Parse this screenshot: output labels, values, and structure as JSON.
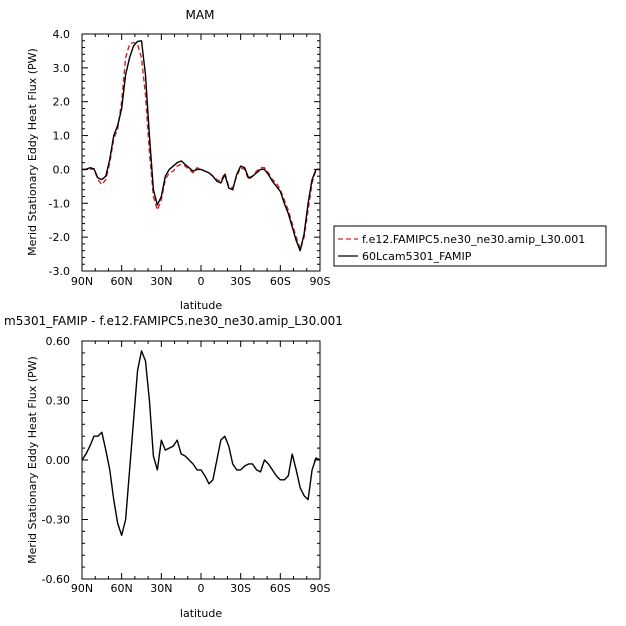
{
  "chart_data": [
    {
      "type": "line",
      "title": "MAM",
      "xlabel": "latitude",
      "ylabel": "Merid Stationary Eddy Heat Flux (PW)",
      "xlim": [
        90,
        -90
      ],
      "ylim": [
        -3.0,
        4.0
      ],
      "xticks": [
        90,
        60,
        30,
        0,
        -30,
        -60,
        -90
      ],
      "xtick_labels": [
        "90N",
        "60N",
        "30N",
        "0",
        "30S",
        "60S",
        "90S"
      ],
      "yticks": [
        -3,
        -2,
        -1,
        0,
        1,
        2,
        3,
        4
      ],
      "ytick_labels": [
        "-3.0",
        "-2.0",
        "-1.0",
        "0.0",
        "1.0",
        "2.0",
        "3.0",
        "4.0"
      ],
      "legend_position": "right",
      "series": [
        {
          "name": "f.e12.FAMIPC5.ne30_ne30.amip_L30.001",
          "color": "#d62020",
          "dash": "dashed",
          "x": [
            90,
            87,
            84,
            81,
            78,
            75,
            72,
            69,
            66,
            63,
            60,
            57,
            54,
            51,
            48,
            45,
            42,
            39,
            36,
            33,
            30,
            27,
            24,
            21,
            18,
            15,
            12,
            9,
            6,
            3,
            0,
            -3,
            -6,
            -9,
            -12,
            -15,
            -18,
            -21,
            -24,
            -27,
            -30,
            -33,
            -36,
            -39,
            -42,
            -45,
            -48,
            -51,
            -54,
            -57,
            -60,
            -63,
            -66,
            -69,
            -72,
            -75,
            -78,
            -81,
            -84,
            -87,
            -90
          ],
          "y": [
            0.0,
            0.0,
            0.0,
            0.02,
            -0.3,
            -0.45,
            -0.3,
            0.2,
            0.9,
            1.2,
            2.0,
            3.3,
            3.7,
            3.75,
            3.7,
            3.3,
            2.2,
            0.5,
            -0.8,
            -1.2,
            -0.9,
            -0.3,
            -0.1,
            -0.05,
            0.1,
            0.15,
            0.1,
            0.0,
            -0.1,
            0.05,
            0.0,
            -0.05,
            -0.1,
            -0.2,
            -0.3,
            -0.35,
            -0.1,
            -0.5,
            -0.55,
            -0.2,
            0.05,
            0.0,
            -0.3,
            -0.2,
            -0.05,
            0.05,
            0.05,
            -0.1,
            -0.3,
            -0.4,
            -0.6,
            -0.9,
            -1.2,
            -1.6,
            -2.0,
            -2.35,
            -2.0,
            -1.2,
            -0.4,
            0.0,
            0.0
          ]
        },
        {
          "name": "60Lcam5301_FAMIP",
          "color": "#000000",
          "dash": "solid",
          "x": [
            90,
            87,
            84,
            81,
            78,
            75,
            72,
            69,
            66,
            63,
            60,
            57,
            54,
            51,
            48,
            45,
            42,
            39,
            36,
            33,
            30,
            27,
            24,
            21,
            18,
            15,
            12,
            9,
            6,
            3,
            0,
            -3,
            -6,
            -9,
            -12,
            -15,
            -18,
            -21,
            -24,
            -27,
            -30,
            -33,
            -36,
            -39,
            -42,
            -45,
            -48,
            -51,
            -54,
            -57,
            -60,
            -63,
            -66,
            -69,
            -72,
            -75,
            -78,
            -81,
            -84,
            -87,
            -90
          ],
          "y": [
            0.0,
            0.0,
            0.05,
            0.02,
            -0.25,
            -0.3,
            -0.2,
            0.3,
            1.0,
            1.3,
            1.8,
            2.8,
            3.3,
            3.65,
            3.78,
            3.8,
            2.8,
            1.0,
            -0.6,
            -1.05,
            -0.8,
            -0.2,
            0.0,
            0.1,
            0.2,
            0.25,
            0.15,
            0.05,
            -0.05,
            0.0,
            0.0,
            -0.05,
            -0.1,
            -0.2,
            -0.35,
            -0.4,
            -0.15,
            -0.55,
            -0.6,
            -0.15,
            0.1,
            0.05,
            -0.25,
            -0.2,
            -0.1,
            0.0,
            0.0,
            -0.15,
            -0.35,
            -0.5,
            -0.65,
            -1.0,
            -1.3,
            -1.7,
            -2.1,
            -2.4,
            -1.9,
            -1.0,
            -0.3,
            0.0,
            0.0
          ]
        }
      ]
    },
    {
      "type": "line",
      "title": "m5301_FAMIP - f.e12.FAMIPC5.ne30_ne30.amip_L30.001",
      "xlabel": "latitude",
      "ylabel": "Merid Stationary Eddy Heat Flux (PW)",
      "xlim": [
        90,
        -90
      ],
      "ylim": [
        -0.6,
        0.6
      ],
      "xticks": [
        90,
        60,
        30,
        0,
        -30,
        -60,
        -90
      ],
      "xtick_labels": [
        "90N",
        "60N",
        "30N",
        "0",
        "30S",
        "60S",
        "90S"
      ],
      "yticks": [
        -0.6,
        -0.3,
        0.0,
        0.3,
        0.6
      ],
      "ytick_labels": [
        "-0.60",
        "-0.30",
        "0.00",
        "0.30",
        "0.60"
      ],
      "series": [
        {
          "color": "#000000",
          "dash": "solid",
          "x": [
            90,
            87,
            84,
            81,
            78,
            75,
            72,
            69,
            66,
            63,
            60,
            57,
            54,
            51,
            48,
            45,
            42,
            39,
            36,
            33,
            30,
            27,
            24,
            21,
            18,
            15,
            12,
            9,
            6,
            3,
            0,
            -3,
            -6,
            -9,
            -12,
            -15,
            -18,
            -21,
            -24,
            -27,
            -30,
            -33,
            -36,
            -39,
            -42,
            -45,
            -48,
            -51,
            -54,
            -57,
            -60,
            -63,
            -66,
            -69,
            -72,
            -75,
            -78,
            -81,
            -84,
            -87,
            -90
          ],
          "y": [
            0.0,
            0.03,
            0.07,
            0.12,
            0.12,
            0.14,
            0.05,
            -0.05,
            -0.2,
            -0.32,
            -0.38,
            -0.3,
            -0.05,
            0.2,
            0.45,
            0.55,
            0.5,
            0.3,
            0.02,
            -0.05,
            0.1,
            0.05,
            0.06,
            0.07,
            0.1,
            0.03,
            0.02,
            0.0,
            -0.02,
            -0.05,
            -0.05,
            -0.08,
            -0.12,
            -0.1,
            0.0,
            0.1,
            0.12,
            0.07,
            -0.02,
            -0.05,
            -0.05,
            -0.03,
            -0.02,
            -0.02,
            -0.05,
            -0.06,
            0.0,
            -0.02,
            -0.05,
            -0.08,
            -0.1,
            -0.1,
            -0.08,
            0.03,
            -0.05,
            -0.14,
            -0.18,
            -0.2,
            -0.05,
            0.01,
            0.0
          ]
        }
      ]
    }
  ]
}
